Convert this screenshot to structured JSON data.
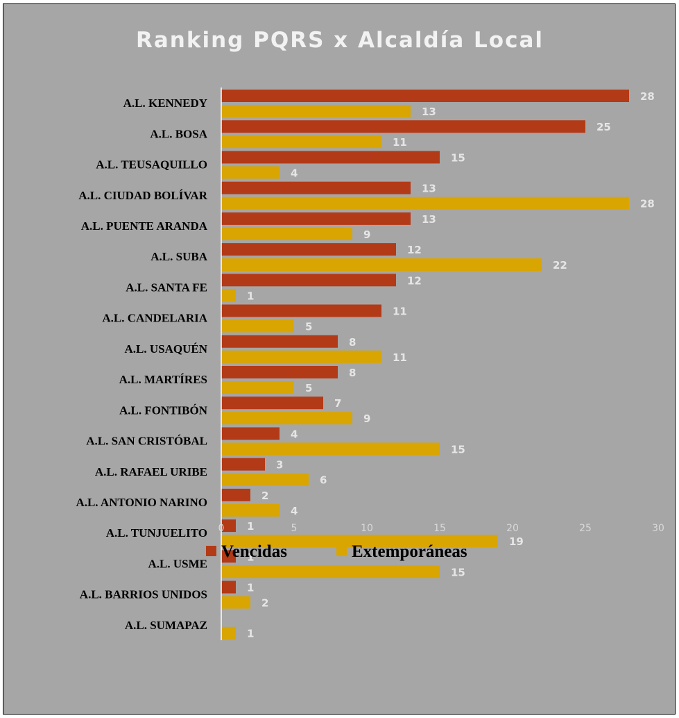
{
  "chart_data": {
    "type": "bar",
    "orientation": "horizontal",
    "title": "Ranking PQRS x Alcaldía Local",
    "categories": [
      "A.L.  KENNEDY",
      "A.L. BOSA",
      "A.L. TEUSAQUILLO",
      "A.L. CIUDAD BOLÍVAR",
      "A.L. PUENTE ARANDA",
      "A.L. SUBA",
      "A.L. SANTA FE",
      "A.L. CANDELARIA",
      "A.L. USAQUÉN",
      "A.L. MARTÍRES",
      "A.L. FONTIBÓN",
      "A.L. SAN CRISTÓBAL",
      "A.L. RAFAEL URIBE",
      "A.L. ANTONIO NARINO",
      "A.L. TUNJUELITO",
      "A.L. USME",
      "A.L. BARRIOS UNIDOS",
      "A.L. SUMAPAZ"
    ],
    "series": [
      {
        "name": "Vencidas",
        "color": "#b33a17",
        "values": [
          28,
          25,
          15,
          13,
          13,
          12,
          12,
          11,
          8,
          8,
          7,
          4,
          3,
          2,
          1,
          1,
          1,
          null
        ]
      },
      {
        "name": "Extemporáneas",
        "color": "#d9a500",
        "values": [
          13,
          11,
          4,
          28,
          9,
          22,
          1,
          5,
          11,
          5,
          9,
          15,
          6,
          4,
          19,
          15,
          2,
          1
        ]
      }
    ],
    "xlim": [
      0,
      30
    ],
    "xticks": [
      0,
      5,
      10,
      15,
      20,
      25,
      30
    ],
    "grid": false,
    "legend": "bottom",
    "background": "#a6a6a6"
  }
}
